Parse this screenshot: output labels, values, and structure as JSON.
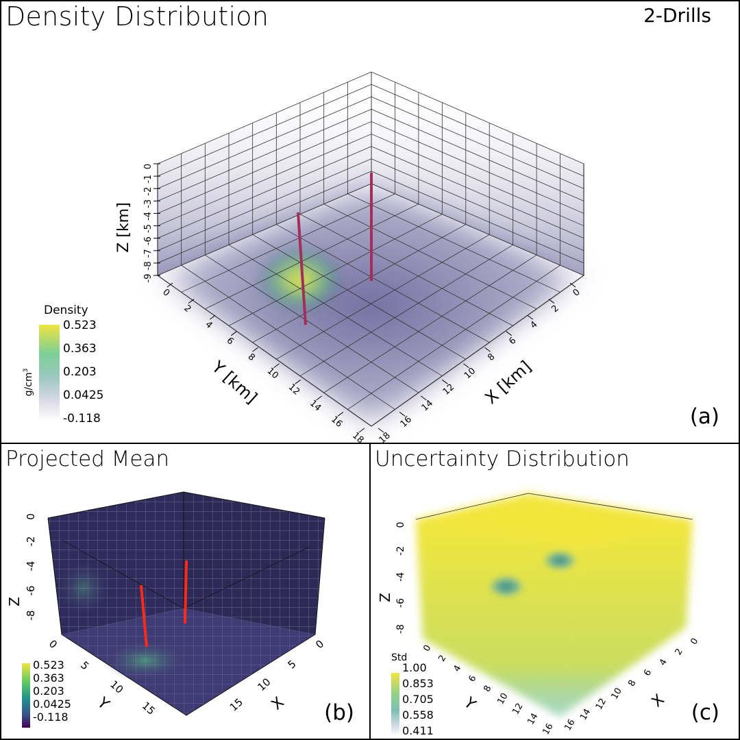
{
  "panel_a": {
    "title": "Density Distribution",
    "badge": "2-Drills",
    "tag": "(a)",
    "x_label": "X [km]",
    "y_label": "Y [km]",
    "z_label": "Z [km]",
    "x_ticks": [
      "0",
      "2",
      "4",
      "6",
      "8",
      "10",
      "12",
      "14",
      "16",
      "18"
    ],
    "y_ticks": [
      "0",
      "2",
      "4",
      "6",
      "8",
      "10",
      "12",
      "14",
      "16",
      "18"
    ],
    "z_ticks": [
      "-9",
      "-8",
      "-7",
      "-6",
      "-5",
      "-4",
      "-3",
      "-2",
      "-1",
      "0"
    ],
    "colorbar": {
      "title": "Density",
      "unit": "g/cm",
      "unit_sup": "3",
      "labels": [
        "0.523",
        "0.363",
        "0.203",
        "0.0425",
        "-0.118"
      ]
    }
  },
  "panel_b": {
    "title": "Projected Mean",
    "tag": "(b)",
    "x_label": "X",
    "y_label": "Y",
    "z_label": "Z",
    "x_ticks": [
      "0",
      "5",
      "10",
      "15"
    ],
    "y_ticks": [
      "0",
      "5",
      "10",
      "15"
    ],
    "z_ticks": [
      "-8",
      "-6",
      "-4",
      "-2",
      "0"
    ],
    "colorbar": {
      "labels": [
        "0.523",
        "0.363",
        "0.203",
        "0.0425",
        "-0.118"
      ]
    }
  },
  "panel_c": {
    "title": "Uncertainty Distribution",
    "tag": "(c)",
    "x_label": "X",
    "y_label": "Y",
    "z_label": "Z",
    "x_ticks": [
      "0",
      "2",
      "4",
      "6",
      "8",
      "10",
      "12",
      "14",
      "16"
    ],
    "y_ticks": [
      "0",
      "2",
      "4",
      "6",
      "8",
      "10",
      "12",
      "14",
      "16"
    ],
    "z_ticks": [
      "-8",
      "-6",
      "-4",
      "-2",
      "0"
    ],
    "colorbar": {
      "title": "Std",
      "labels": [
        "1.00",
        "0.853",
        "0.705",
        "0.558",
        "0.411"
      ]
    }
  },
  "colors": {
    "viridis_top": "#f0e442",
    "viridis_mid": "#5cc8a0",
    "viridis_low": "#3b4f8a",
    "viridis_bottom": "#440154",
    "haze": "#6e6a9e",
    "drill": "#ff2a1a"
  }
}
